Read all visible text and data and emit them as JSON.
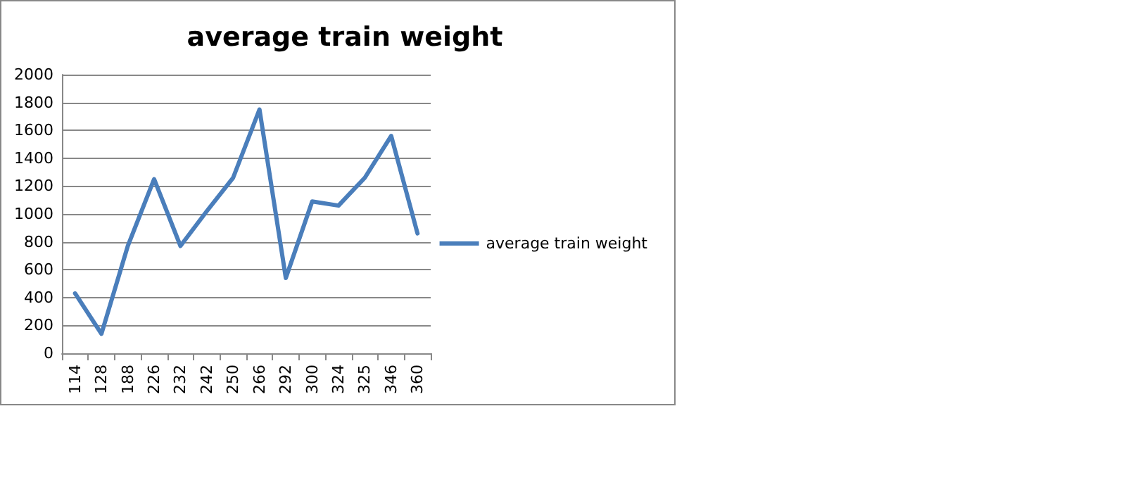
{
  "chart_data": {
    "type": "line",
    "title": "average train weight",
    "categories": [
      "114",
      "128",
      "188",
      "226",
      "232",
      "242",
      "250",
      "266",
      "292",
      "300",
      "324",
      "325",
      "346",
      "360"
    ],
    "series": [
      {
        "name": "average train weight",
        "color": "#4a7ebb",
        "values": [
          430,
          140,
          770,
          1250,
          770,
          1020,
          1260,
          1750,
          540,
          1090,
          1060,
          1260,
          1560,
          860
        ]
      }
    ],
    "ylim": [
      0,
      2000
    ],
    "yticks": [
      0,
      200,
      400,
      600,
      800,
      1000,
      1200,
      1400,
      1600,
      1800,
      2000
    ],
    "grid": "y",
    "legend": "right",
    "marker": "none",
    "line_style": "solid"
  }
}
